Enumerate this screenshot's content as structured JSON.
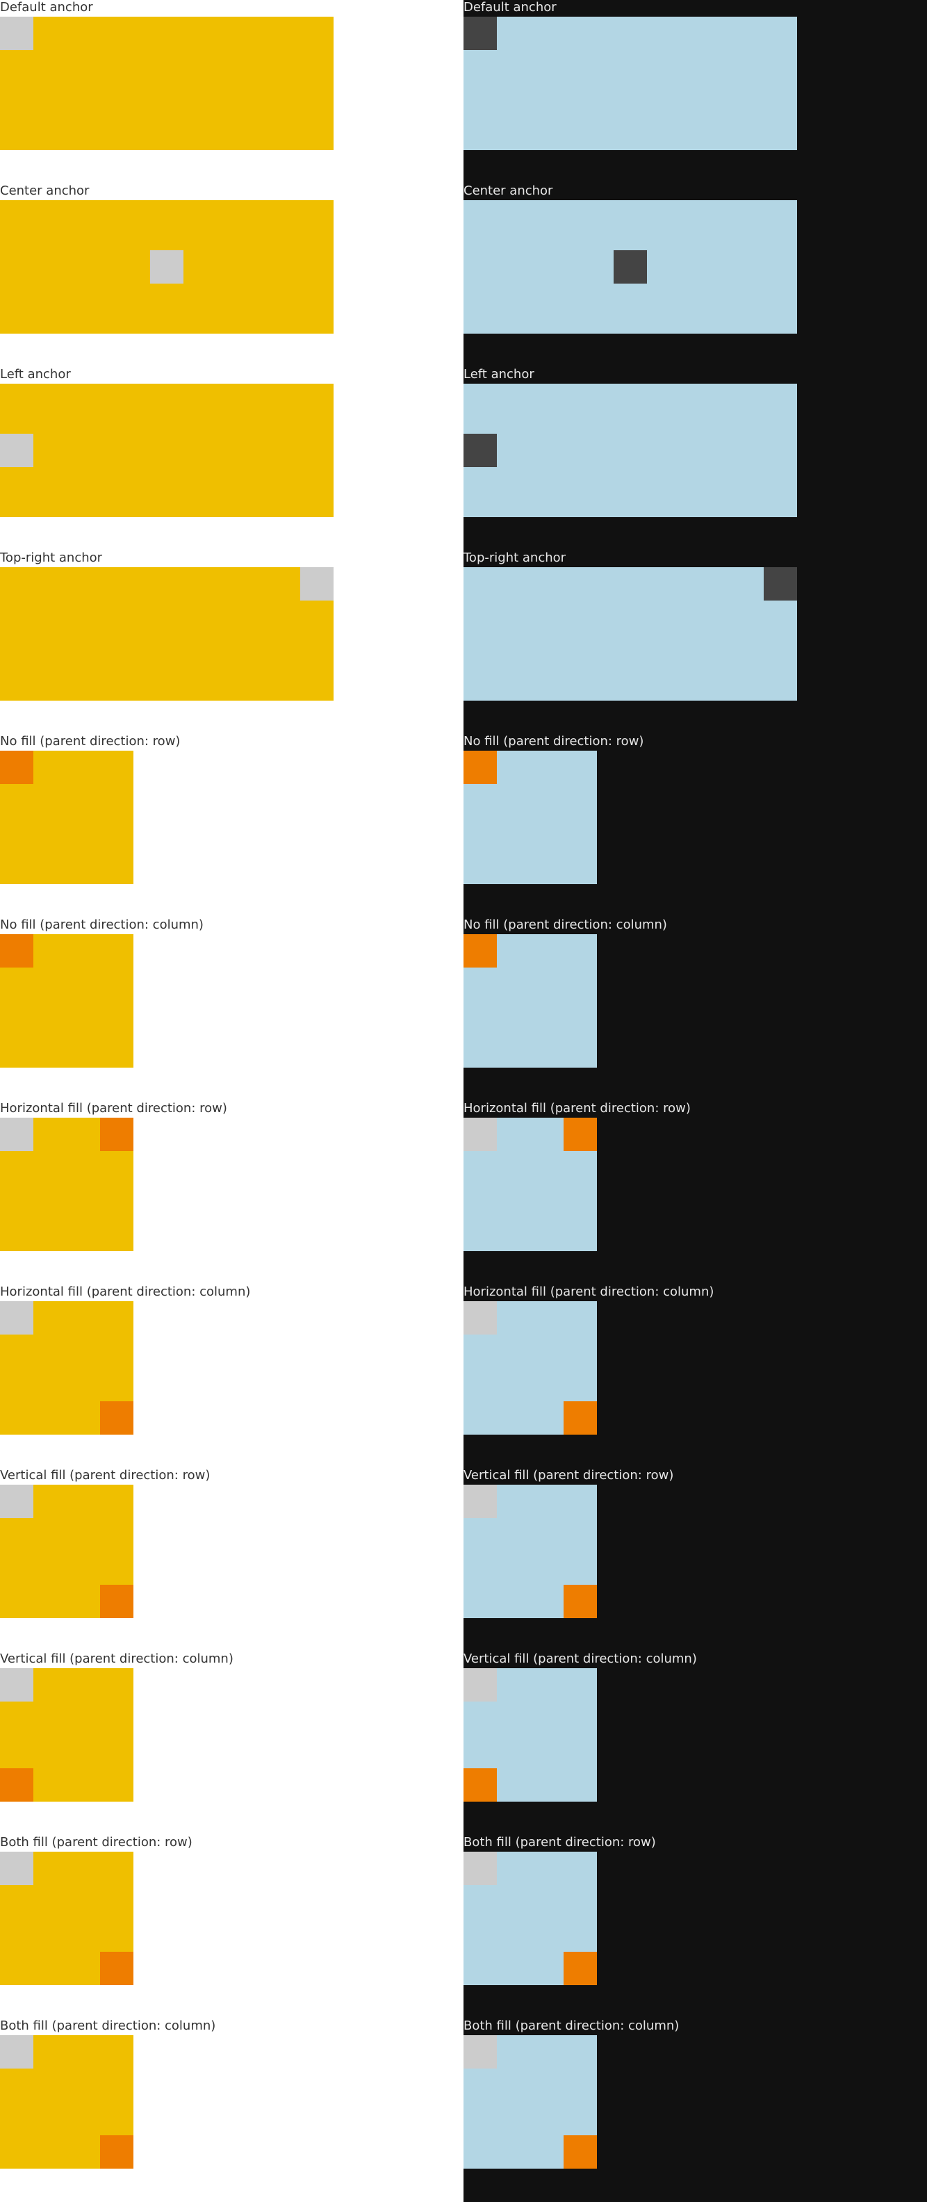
{
  "themes": {
    "light": {
      "page_bg": "#ffffff",
      "box_color": "#efbf00",
      "label_color": "#333333",
      "anchor_square": "#cccccc",
      "fill_square": "#ee7d00"
    },
    "dark": {
      "page_bg": "#111111",
      "box_color": "#b3d6e4",
      "label_color": "#e6e6e6",
      "anchor_square": "#444444",
      "anchor_square_fill_demo": "#cccccc",
      "fill_square": "#ee7d00"
    }
  },
  "sections": [
    {
      "id": "default-anchor",
      "label": "Default anchor"
    },
    {
      "id": "center-anchor",
      "label": "Center anchor"
    },
    {
      "id": "left-anchor",
      "label": "Left anchor"
    },
    {
      "id": "top-right-anchor",
      "label": "Top-right anchor"
    },
    {
      "id": "no-fill-row",
      "label": "No fill (parent direction: row)"
    },
    {
      "id": "no-fill-column",
      "label": "No fill (parent direction: column)"
    },
    {
      "id": "horizontal-fill-row",
      "label": "Horizontal fill (parent direction: row)"
    },
    {
      "id": "horizontal-fill-column",
      "label": "Horizontal fill (parent direction: column)"
    },
    {
      "id": "vertical-fill-row",
      "label": "Vertical fill (parent direction: row)"
    },
    {
      "id": "vertical-fill-column",
      "label": "Vertical fill (parent direction: column)"
    },
    {
      "id": "both-fill-row",
      "label": "Both fill (parent direction: row)"
    },
    {
      "id": "both-fill-column",
      "label": "Both fill (parent direction: column)"
    }
  ]
}
